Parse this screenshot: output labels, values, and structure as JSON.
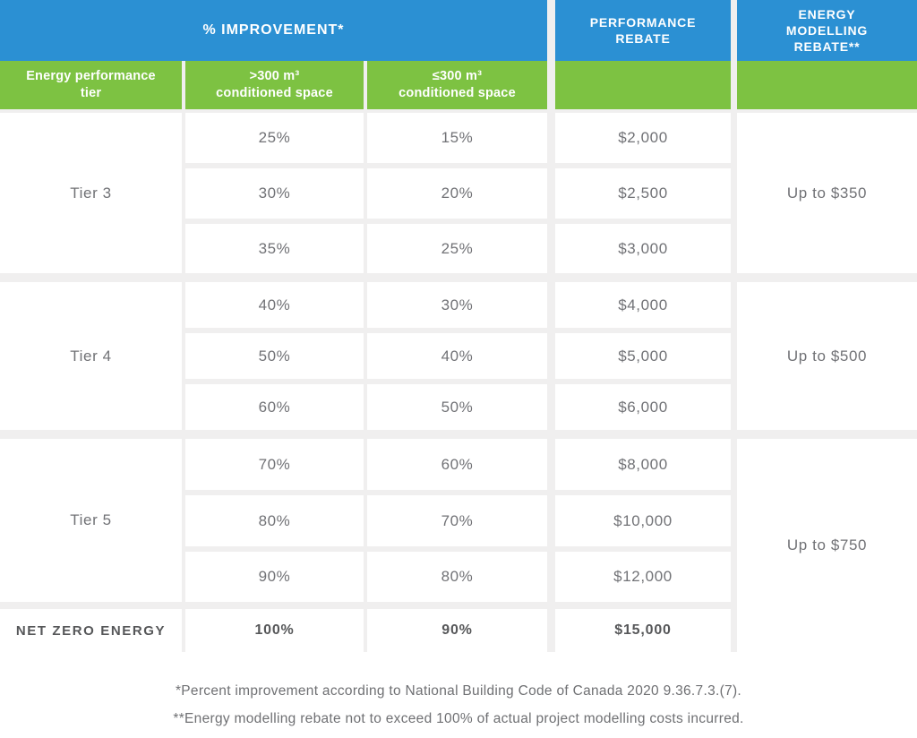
{
  "table": {
    "header": {
      "improvement": "% IMPROVEMENT*",
      "performance_rebate": "PERFORMANCE\nREBATE",
      "modelling_rebate": "ENERGY\nMODELLING\nREBATE**",
      "tier": "Energy performance\ntier",
      "gt300": ">300 m³\nconditioned space",
      "le300": "≤300 m³\nconditioned space"
    },
    "groups": [
      {
        "tier": "Tier 3",
        "modelling": "Up to $350",
        "rows": [
          {
            "gt300": "25%",
            "le300": "15%",
            "rebate": "$2,000"
          },
          {
            "gt300": "30%",
            "le300": "20%",
            "rebate": "$2,500"
          },
          {
            "gt300": "35%",
            "le300": "25%",
            "rebate": "$3,000"
          }
        ]
      },
      {
        "tier": "Tier 4",
        "modelling": "Up to $500",
        "rows": [
          {
            "gt300": "40%",
            "le300": "30%",
            "rebate": "$4,000"
          },
          {
            "gt300": "50%",
            "le300": "40%",
            "rebate": "$5,000"
          },
          {
            "gt300": "60%",
            "le300": "50%",
            "rebate": "$6,000"
          }
        ]
      },
      {
        "tier": "Tier 5",
        "modelling": "Up to $750",
        "rows": [
          {
            "gt300": "70%",
            "le300": "60%",
            "rebate": "$8,000"
          },
          {
            "gt300": "80%",
            "le300": "70%",
            "rebate": "$10,000"
          },
          {
            "gt300": "90%",
            "le300": "80%",
            "rebate": "$12,000"
          }
        ]
      }
    ],
    "net_zero": {
      "tier": "NET ZERO ENERGY",
      "gt300": "100%",
      "le300": "90%",
      "rebate": "$15,000"
    }
  },
  "footnotes": [
    "*Percent improvement according to National Building Code of Canada 2020 9.36.7.3.(7).",
    "**Energy modelling rebate not to exceed 100% of actual project modelling costs incurred."
  ],
  "colors": {
    "header_blue": "#2b90d3",
    "header_green": "#7dc242",
    "gap_gray": "#f0efef",
    "value_text": "#717276",
    "bold_text": "#565759"
  }
}
